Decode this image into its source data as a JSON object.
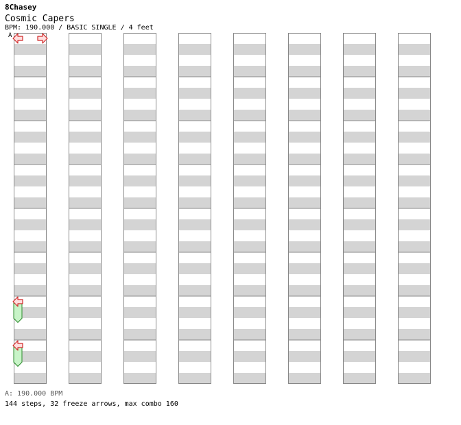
{
  "header": {
    "author": "8Chasey",
    "song_title": "Cosmic Capers",
    "info": "BPM: 190.000 / BASIC SINGLE / 4 feet",
    "section_marker": "A"
  },
  "footer": {
    "bpm_line": "A: 190.000 BPM",
    "summary": "144 steps, 32 freeze arrows, max combo 160"
  },
  "colors": {
    "stripe": "#d4d4d4",
    "border": "#888888",
    "arrow_red_fill": "#ffdede",
    "arrow_red_stroke": "#d02828",
    "arrow_blue_fill": "#78b8f0",
    "arrow_blue_stroke": "#1060b0",
    "freeze_fill": "#c8f4c8",
    "freeze_stroke": "#2a8a2a"
  },
  "chart_data": {
    "type": "step-chart",
    "lanes": [
      "left",
      "down",
      "up",
      "right"
    ],
    "columns": 8,
    "measures_per_column": 8,
    "notes": [
      {
        "c": 0,
        "m": 0,
        "b": 0,
        "l": 3,
        "t": "n"
      },
      {
        "c": 0,
        "m": 0,
        "b": 0,
        "l": 0,
        "t": "n"
      },
      {
        "c": 0,
        "m": 6,
        "b": 0,
        "l": 0,
        "t": "f",
        "e": 6.6
      },
      {
        "c": 0,
        "m": 7,
        "b": 0,
        "l": 0,
        "t": "f",
        "e": 7.6
      }
    ]
  }
}
